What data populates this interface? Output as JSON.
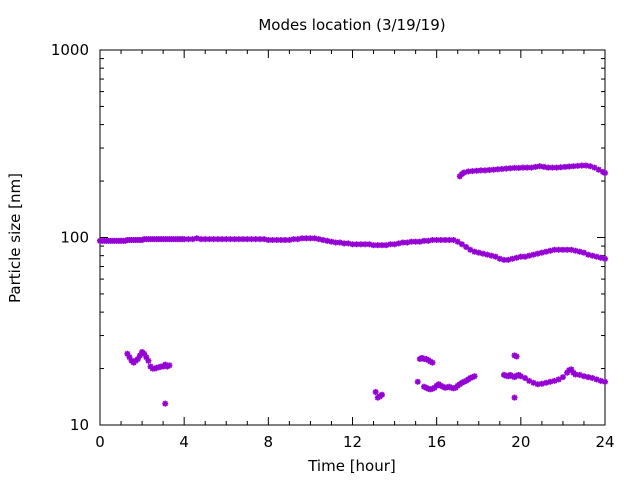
{
  "chart_data": {
    "type": "scatter",
    "title": "Modes location (3/19/19)",
    "xlabel": "Time [hour]",
    "ylabel": "Particle size [nm]",
    "xlim": [
      0,
      24
    ],
    "ylim": [
      10,
      1000
    ],
    "yscale": "log",
    "x_ticks": [
      0,
      4,
      8,
      12,
      16,
      20,
      24
    ],
    "y_ticks": [
      10,
      100,
      1000
    ],
    "grid": false,
    "legend": "none",
    "marker_color": "#9400d3",
    "series": [
      {
        "points": [
          [
            0.0,
            96
          ],
          [
            0.1,
            96
          ],
          [
            0.2,
            96
          ],
          [
            0.3,
            96
          ],
          [
            0.4,
            96
          ],
          [
            0.5,
            96
          ],
          [
            0.6,
            96
          ],
          [
            0.7,
            96
          ],
          [
            0.8,
            96
          ],
          [
            0.9,
            96
          ],
          [
            1.0,
            96
          ],
          [
            1.1,
            96
          ],
          [
            1.2,
            96
          ],
          [
            1.3,
            97
          ],
          [
            1.4,
            97
          ],
          [
            1.5,
            97
          ],
          [
            1.6,
            97
          ],
          [
            1.7,
            97
          ],
          [
            1.8,
            97
          ],
          [
            1.9,
            97
          ],
          [
            2.0,
            97
          ],
          [
            2.1,
            98
          ],
          [
            2.2,
            98
          ],
          [
            2.3,
            98
          ],
          [
            2.4,
            98
          ],
          [
            2.5,
            98
          ],
          [
            2.6,
            98
          ],
          [
            2.7,
            98
          ],
          [
            2.8,
            98
          ],
          [
            2.9,
            98
          ],
          [
            3.0,
            98
          ],
          [
            3.1,
            98
          ],
          [
            3.2,
            98
          ],
          [
            3.3,
            98
          ],
          [
            3.4,
            98
          ],
          [
            3.5,
            98
          ],
          [
            3.6,
            98
          ],
          [
            3.7,
            98
          ],
          [
            3.8,
            98
          ],
          [
            3.9,
            98
          ],
          [
            4.0,
            98
          ],
          [
            4.2,
            98
          ],
          [
            4.4,
            98
          ],
          [
            4.6,
            99
          ],
          [
            4.8,
            98
          ],
          [
            5.0,
            98
          ],
          [
            5.2,
            98
          ],
          [
            5.4,
            98
          ],
          [
            5.6,
            98
          ],
          [
            5.8,
            98
          ],
          [
            6.0,
            98
          ],
          [
            6.2,
            98
          ],
          [
            6.4,
            98
          ],
          [
            6.6,
            98
          ],
          [
            6.8,
            98
          ],
          [
            7.0,
            98
          ],
          [
            7.2,
            98
          ],
          [
            7.4,
            98
          ],
          [
            7.6,
            98
          ],
          [
            7.8,
            98
          ],
          [
            8.0,
            97
          ],
          [
            8.2,
            97
          ],
          [
            8.4,
            97
          ],
          [
            8.6,
            97
          ],
          [
            8.8,
            97
          ],
          [
            9.0,
            97
          ],
          [
            9.2,
            98
          ],
          [
            9.4,
            98
          ],
          [
            9.6,
            99
          ],
          [
            9.8,
            99
          ],
          [
            10.0,
            99
          ],
          [
            10.2,
            99
          ],
          [
            10.4,
            98
          ],
          [
            10.6,
            97
          ],
          [
            10.8,
            96
          ],
          [
            11.0,
            95
          ],
          [
            11.2,
            94
          ],
          [
            11.4,
            94
          ],
          [
            11.6,
            93
          ],
          [
            11.8,
            93
          ],
          [
            12.0,
            92
          ],
          [
            12.2,
            92
          ],
          [
            12.4,
            92
          ],
          [
            12.6,
            92
          ],
          [
            12.8,
            92
          ],
          [
            13.0,
            91
          ],
          [
            13.2,
            91
          ],
          [
            13.4,
            91
          ],
          [
            13.6,
            91
          ],
          [
            13.8,
            92
          ],
          [
            14.0,
            92
          ],
          [
            14.2,
            93
          ],
          [
            14.4,
            94
          ],
          [
            14.6,
            94
          ],
          [
            14.8,
            95
          ],
          [
            15.0,
            95
          ],
          [
            15.2,
            95
          ],
          [
            15.4,
            96
          ],
          [
            15.6,
            96
          ],
          [
            15.8,
            97
          ],
          [
            16.0,
            97
          ],
          [
            16.2,
            97
          ],
          [
            16.4,
            97
          ],
          [
            16.6,
            97
          ],
          [
            16.8,
            97
          ],
          [
            17.0,
            95
          ],
          [
            17.2,
            92
          ],
          [
            17.4,
            89
          ],
          [
            17.6,
            86
          ],
          [
            17.8,
            84
          ],
          [
            18.0,
            83
          ],
          [
            18.2,
            82
          ],
          [
            18.4,
            81
          ],
          [
            18.6,
            80
          ],
          [
            18.8,
            79
          ],
          [
            19.0,
            77
          ],
          [
            19.2,
            76
          ],
          [
            19.4,
            76
          ],
          [
            19.6,
            77
          ],
          [
            19.8,
            78
          ],
          [
            20.0,
            79
          ],
          [
            20.2,
            79
          ],
          [
            20.4,
            80
          ],
          [
            20.6,
            81
          ],
          [
            20.8,
            82
          ],
          [
            21.0,
            83
          ],
          [
            21.2,
            84
          ],
          [
            21.4,
            85
          ],
          [
            21.6,
            86
          ],
          [
            21.8,
            86
          ],
          [
            22.0,
            86
          ],
          [
            22.2,
            86
          ],
          [
            22.4,
            86
          ],
          [
            22.6,
            85
          ],
          [
            22.8,
            84
          ],
          [
            23.0,
            83
          ],
          [
            23.2,
            81
          ],
          [
            23.4,
            80
          ],
          [
            23.6,
            79
          ],
          [
            23.8,
            78
          ],
          [
            24.0,
            77
          ]
        ]
      },
      {
        "points": [
          [
            17.1,
            212
          ],
          [
            17.2,
            218
          ],
          [
            17.3,
            222
          ],
          [
            17.5,
            225
          ],
          [
            17.7,
            226
          ],
          [
            17.9,
            227
          ],
          [
            18.1,
            228
          ],
          [
            18.3,
            228
          ],
          [
            18.5,
            229
          ],
          [
            18.7,
            230
          ],
          [
            18.9,
            231
          ],
          [
            19.1,
            232
          ],
          [
            19.3,
            233
          ],
          [
            19.5,
            234
          ],
          [
            19.7,
            235
          ],
          [
            19.9,
            235
          ],
          [
            20.1,
            236
          ],
          [
            20.3,
            236
          ],
          [
            20.5,
            236
          ],
          [
            20.7,
            238
          ],
          [
            20.9,
            240
          ],
          [
            21.1,
            238
          ],
          [
            21.3,
            236
          ],
          [
            21.5,
            236
          ],
          [
            21.7,
            236
          ],
          [
            21.9,
            237
          ],
          [
            22.1,
            238
          ],
          [
            22.3,
            239
          ],
          [
            22.5,
            240
          ],
          [
            22.7,
            241
          ],
          [
            22.9,
            242
          ],
          [
            23.1,
            242
          ],
          [
            23.3,
            240
          ],
          [
            23.5,
            236
          ],
          [
            23.7,
            230
          ],
          [
            23.9,
            224
          ],
          [
            24.0,
            221
          ]
        ]
      },
      {
        "points": [
          [
            1.3,
            24
          ],
          [
            1.4,
            23
          ],
          [
            1.5,
            22
          ],
          [
            1.6,
            21.5
          ],
          [
            1.7,
            22
          ],
          [
            1.8,
            22.5
          ],
          [
            1.9,
            23.5
          ],
          [
            2.0,
            24.5
          ],
          [
            2.1,
            24
          ],
          [
            2.2,
            23
          ],
          [
            2.3,
            22
          ],
          [
            2.4,
            20.5
          ],
          [
            2.5,
            20
          ],
          [
            2.6,
            20
          ],
          [
            2.7,
            20.2
          ],
          [
            2.8,
            20.3
          ],
          [
            2.9,
            20.5
          ],
          [
            3.0,
            20.5
          ],
          [
            3.1,
            21
          ],
          [
            3.2,
            20.5
          ],
          [
            3.3,
            20.8
          ],
          [
            3.1,
            13
          ],
          [
            13.1,
            15
          ],
          [
            13.2,
            14
          ],
          [
            13.3,
            14.2
          ],
          [
            13.4,
            14.5
          ],
          [
            15.1,
            17
          ],
          [
            15.2,
            22.5
          ],
          [
            15.3,
            22.8
          ],
          [
            15.4,
            22.5
          ],
          [
            15.5,
            22.5
          ],
          [
            15.6,
            22.2
          ],
          [
            15.7,
            21.8
          ],
          [
            15.8,
            21.5
          ],
          [
            15.4,
            16
          ],
          [
            15.5,
            15.8
          ],
          [
            15.6,
            15.6
          ],
          [
            15.7,
            15.5
          ],
          [
            15.8,
            15.6
          ],
          [
            15.9,
            15.8
          ],
          [
            16.0,
            16.2
          ],
          [
            16.1,
            16.5
          ],
          [
            16.2,
            16.2
          ],
          [
            16.3,
            16
          ],
          [
            16.4,
            15.8
          ],
          [
            16.5,
            15.9
          ],
          [
            16.6,
            16
          ],
          [
            16.7,
            15.8
          ],
          [
            16.8,
            15.7
          ],
          [
            16.9,
            15.8
          ],
          [
            17.0,
            16.2
          ],
          [
            17.1,
            16.5
          ],
          [
            17.2,
            16.8
          ],
          [
            17.3,
            17
          ],
          [
            17.4,
            17.2
          ],
          [
            17.5,
            17.5
          ],
          [
            17.6,
            17.8
          ],
          [
            17.7,
            18
          ],
          [
            17.8,
            18.2
          ],
          [
            19.2,
            18.5
          ],
          [
            19.3,
            18.3
          ],
          [
            19.4,
            18.2
          ],
          [
            19.5,
            18.5
          ],
          [
            19.6,
            18.2
          ],
          [
            19.7,
            18
          ],
          [
            19.8,
            18.3
          ],
          [
            19.9,
            18.5
          ],
          [
            20.0,
            18.2
          ],
          [
            19.7,
            23.5
          ],
          [
            19.8,
            23.2
          ],
          [
            19.7,
            14
          ],
          [
            20.2,
            17.8
          ],
          [
            20.4,
            17.2
          ],
          [
            20.6,
            16.8
          ],
          [
            20.8,
            16.5
          ],
          [
            21.0,
            16.6
          ],
          [
            21.2,
            16.8
          ],
          [
            21.4,
            17
          ],
          [
            21.6,
            17.2
          ],
          [
            21.8,
            17.5
          ],
          [
            22.0,
            18
          ],
          [
            22.2,
            19
          ],
          [
            22.3,
            19.6
          ],
          [
            22.4,
            19.8
          ],
          [
            22.5,
            19
          ],
          [
            22.6,
            18.6
          ],
          [
            22.8,
            18.5
          ],
          [
            23.0,
            18.2
          ],
          [
            23.2,
            18
          ],
          [
            23.4,
            17.8
          ],
          [
            23.6,
            17.5
          ],
          [
            23.8,
            17.2
          ],
          [
            24.0,
            17
          ]
        ]
      }
    ]
  }
}
